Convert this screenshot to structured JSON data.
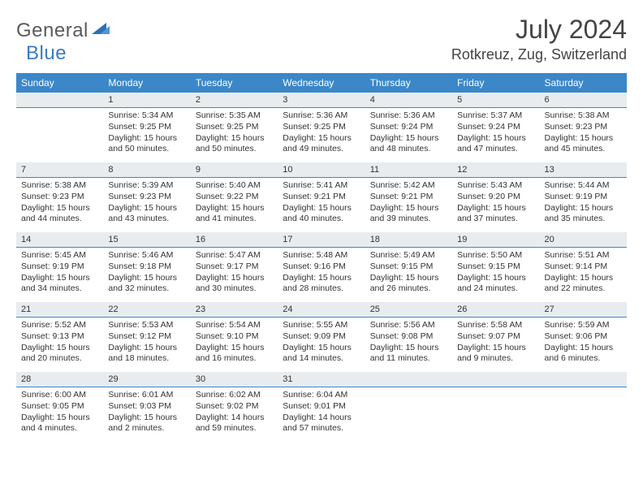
{
  "logo": {
    "general": "General",
    "blue": "Blue"
  },
  "title": "July 2024",
  "location": "Rotkreuz, Zug, Switzerland",
  "colors": {
    "header_bg": "#3b87c8",
    "header_fg": "#ffffff",
    "daynum_bg": "#e8ecef",
    "daynum_border": "#3b87c8",
    "logo_gray": "#5a5a5a",
    "logo_blue": "#3b7bbf"
  },
  "weekdays": [
    "Sunday",
    "Monday",
    "Tuesday",
    "Wednesday",
    "Thursday",
    "Friday",
    "Saturday"
  ],
  "weeks": [
    [
      {
        "day": "",
        "sunrise": "",
        "sunset": "",
        "daylight": ""
      },
      {
        "day": "1",
        "sunrise": "Sunrise: 5:34 AM",
        "sunset": "Sunset: 9:25 PM",
        "daylight": "Daylight: 15 hours and 50 minutes."
      },
      {
        "day": "2",
        "sunrise": "Sunrise: 5:35 AM",
        "sunset": "Sunset: 9:25 PM",
        "daylight": "Daylight: 15 hours and 50 minutes."
      },
      {
        "day": "3",
        "sunrise": "Sunrise: 5:36 AM",
        "sunset": "Sunset: 9:25 PM",
        "daylight": "Daylight: 15 hours and 49 minutes."
      },
      {
        "day": "4",
        "sunrise": "Sunrise: 5:36 AM",
        "sunset": "Sunset: 9:24 PM",
        "daylight": "Daylight: 15 hours and 48 minutes."
      },
      {
        "day": "5",
        "sunrise": "Sunrise: 5:37 AM",
        "sunset": "Sunset: 9:24 PM",
        "daylight": "Daylight: 15 hours and 47 minutes."
      },
      {
        "day": "6",
        "sunrise": "Sunrise: 5:38 AM",
        "sunset": "Sunset: 9:23 PM",
        "daylight": "Daylight: 15 hours and 45 minutes."
      }
    ],
    [
      {
        "day": "7",
        "sunrise": "Sunrise: 5:38 AM",
        "sunset": "Sunset: 9:23 PM",
        "daylight": "Daylight: 15 hours and 44 minutes."
      },
      {
        "day": "8",
        "sunrise": "Sunrise: 5:39 AM",
        "sunset": "Sunset: 9:23 PM",
        "daylight": "Daylight: 15 hours and 43 minutes."
      },
      {
        "day": "9",
        "sunrise": "Sunrise: 5:40 AM",
        "sunset": "Sunset: 9:22 PM",
        "daylight": "Daylight: 15 hours and 41 minutes."
      },
      {
        "day": "10",
        "sunrise": "Sunrise: 5:41 AM",
        "sunset": "Sunset: 9:21 PM",
        "daylight": "Daylight: 15 hours and 40 minutes."
      },
      {
        "day": "11",
        "sunrise": "Sunrise: 5:42 AM",
        "sunset": "Sunset: 9:21 PM",
        "daylight": "Daylight: 15 hours and 39 minutes."
      },
      {
        "day": "12",
        "sunrise": "Sunrise: 5:43 AM",
        "sunset": "Sunset: 9:20 PM",
        "daylight": "Daylight: 15 hours and 37 minutes."
      },
      {
        "day": "13",
        "sunrise": "Sunrise: 5:44 AM",
        "sunset": "Sunset: 9:19 PM",
        "daylight": "Daylight: 15 hours and 35 minutes."
      }
    ],
    [
      {
        "day": "14",
        "sunrise": "Sunrise: 5:45 AM",
        "sunset": "Sunset: 9:19 PM",
        "daylight": "Daylight: 15 hours and 34 minutes."
      },
      {
        "day": "15",
        "sunrise": "Sunrise: 5:46 AM",
        "sunset": "Sunset: 9:18 PM",
        "daylight": "Daylight: 15 hours and 32 minutes."
      },
      {
        "day": "16",
        "sunrise": "Sunrise: 5:47 AM",
        "sunset": "Sunset: 9:17 PM",
        "daylight": "Daylight: 15 hours and 30 minutes."
      },
      {
        "day": "17",
        "sunrise": "Sunrise: 5:48 AM",
        "sunset": "Sunset: 9:16 PM",
        "daylight": "Daylight: 15 hours and 28 minutes."
      },
      {
        "day": "18",
        "sunrise": "Sunrise: 5:49 AM",
        "sunset": "Sunset: 9:15 PM",
        "daylight": "Daylight: 15 hours and 26 minutes."
      },
      {
        "day": "19",
        "sunrise": "Sunrise: 5:50 AM",
        "sunset": "Sunset: 9:15 PM",
        "daylight": "Daylight: 15 hours and 24 minutes."
      },
      {
        "day": "20",
        "sunrise": "Sunrise: 5:51 AM",
        "sunset": "Sunset: 9:14 PM",
        "daylight": "Daylight: 15 hours and 22 minutes."
      }
    ],
    [
      {
        "day": "21",
        "sunrise": "Sunrise: 5:52 AM",
        "sunset": "Sunset: 9:13 PM",
        "daylight": "Daylight: 15 hours and 20 minutes."
      },
      {
        "day": "22",
        "sunrise": "Sunrise: 5:53 AM",
        "sunset": "Sunset: 9:12 PM",
        "daylight": "Daylight: 15 hours and 18 minutes."
      },
      {
        "day": "23",
        "sunrise": "Sunrise: 5:54 AM",
        "sunset": "Sunset: 9:10 PM",
        "daylight": "Daylight: 15 hours and 16 minutes."
      },
      {
        "day": "24",
        "sunrise": "Sunrise: 5:55 AM",
        "sunset": "Sunset: 9:09 PM",
        "daylight": "Daylight: 15 hours and 14 minutes."
      },
      {
        "day": "25",
        "sunrise": "Sunrise: 5:56 AM",
        "sunset": "Sunset: 9:08 PM",
        "daylight": "Daylight: 15 hours and 11 minutes."
      },
      {
        "day": "26",
        "sunrise": "Sunrise: 5:58 AM",
        "sunset": "Sunset: 9:07 PM",
        "daylight": "Daylight: 15 hours and 9 minutes."
      },
      {
        "day": "27",
        "sunrise": "Sunrise: 5:59 AM",
        "sunset": "Sunset: 9:06 PM",
        "daylight": "Daylight: 15 hours and 6 minutes."
      }
    ],
    [
      {
        "day": "28",
        "sunrise": "Sunrise: 6:00 AM",
        "sunset": "Sunset: 9:05 PM",
        "daylight": "Daylight: 15 hours and 4 minutes."
      },
      {
        "day": "29",
        "sunrise": "Sunrise: 6:01 AM",
        "sunset": "Sunset: 9:03 PM",
        "daylight": "Daylight: 15 hours and 2 minutes."
      },
      {
        "day": "30",
        "sunrise": "Sunrise: 6:02 AM",
        "sunset": "Sunset: 9:02 PM",
        "daylight": "Daylight: 14 hours and 59 minutes."
      },
      {
        "day": "31",
        "sunrise": "Sunrise: 6:04 AM",
        "sunset": "Sunset: 9:01 PM",
        "daylight": "Daylight: 14 hours and 57 minutes."
      },
      {
        "day": "",
        "sunrise": "",
        "sunset": "",
        "daylight": ""
      },
      {
        "day": "",
        "sunrise": "",
        "sunset": "",
        "daylight": ""
      },
      {
        "day": "",
        "sunrise": "",
        "sunset": "",
        "daylight": ""
      }
    ]
  ]
}
